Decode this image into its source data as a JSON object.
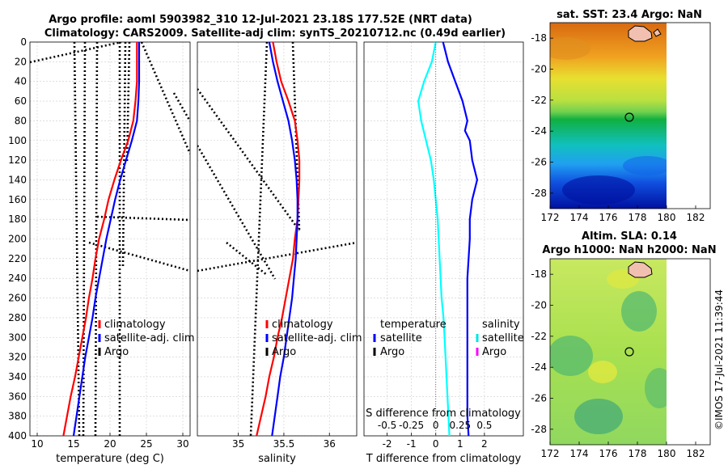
{
  "titles": {
    "line1": "Argo profile: aoml 5903982_310 12-Jul-2021 23.18S 177.52E (NRT data)",
    "line2": "Climatology: CARS2009. Satellite-adj clim: synTS_20210712.nc (0.49d earlier)"
  },
  "copyright": "©IMOS 17-Jul-2021 11:39:44",
  "colors": {
    "climatology": "#ff0000",
    "satellite": "#0000ff",
    "argo": "#000000",
    "t_diff": "#00ffff",
    "s_sat": "#00e5e5",
    "s_argo": "#ff00ff"
  },
  "chart_data": [
    {
      "type": "line",
      "id": "temperature",
      "xlabel": "temperature (deg C)",
      "ylabel": "",
      "xlim": [
        9,
        31
      ],
      "ylim": [
        400,
        0
      ],
      "xticks": [
        "10",
        "15",
        "20",
        "25",
        "30"
      ],
      "yticks": [
        "0",
        "20",
        "40",
        "60",
        "80",
        "100",
        "120",
        "140",
        "160",
        "180",
        "200",
        "220",
        "240",
        "260",
        "280",
        "300",
        "320",
        "340",
        "360",
        "380",
        "400"
      ],
      "legend": [
        "climatology",
        "satellite-adj. clim",
        "Argo"
      ],
      "series": [
        {
          "name": "climatology",
          "depth": [
            0,
            20,
            40,
            60,
            80,
            100,
            120,
            140,
            160,
            180,
            200,
            220,
            240,
            260,
            280,
            300,
            320,
            340,
            360,
            380,
            400
          ],
          "values": [
            23.7,
            23.7,
            23.7,
            23.5,
            23.2,
            22.5,
            21.5,
            20.6,
            19.8,
            19.2,
            18.5,
            18.0,
            17.6,
            17.1,
            16.7,
            16.2,
            15.7,
            15.2,
            14.6,
            14.1,
            13.6
          ]
        },
        {
          "name": "satellite-adj. clim",
          "depth": [
            0,
            20,
            40,
            60,
            80,
            100,
            120,
            140,
            160,
            180,
            200,
            220,
            240,
            260,
            280,
            300,
            320,
            340,
            360,
            380,
            400
          ],
          "values": [
            24.0,
            24.0,
            24.0,
            23.9,
            23.7,
            23.0,
            22.2,
            21.4,
            20.7,
            20.1,
            19.5,
            19.0,
            18.5,
            18.0,
            17.6,
            17.1,
            16.6,
            16.2,
            15.8,
            15.4,
            15.0
          ]
        }
      ]
    },
    {
      "type": "line",
      "id": "salinity",
      "xlabel": "salinity",
      "xlim": [
        34.55,
        36.3
      ],
      "ylim": [
        400,
        0
      ],
      "xticks": [
        "35",
        "35.5",
        "36"
      ],
      "legend": [
        "climatology",
        "satellite-adj. clim",
        "Argo"
      ],
      "series": [
        {
          "name": "climatology",
          "depth": [
            0,
            10,
            20,
            40,
            60,
            80,
            100,
            120,
            140,
            160,
            180,
            200,
            220,
            240,
            260,
            280,
            300,
            320,
            340,
            360,
            380,
            400
          ],
          "values": [
            35.38,
            35.4,
            35.42,
            35.47,
            35.55,
            35.62,
            35.65,
            35.67,
            35.67,
            35.66,
            35.65,
            35.62,
            35.6,
            35.56,
            35.52,
            35.48,
            35.43,
            35.39,
            35.34,
            35.3,
            35.25,
            35.2
          ]
        },
        {
          "name": "satellite-adj. clim",
          "depth": [
            0,
            10,
            20,
            40,
            60,
            80,
            100,
            120,
            140,
            160,
            180,
            200,
            220,
            240,
            260,
            280,
            300,
            320,
            340,
            360,
            380,
            400
          ],
          "values": [
            35.34,
            35.36,
            35.38,
            35.43,
            35.49,
            35.55,
            35.59,
            35.62,
            35.64,
            35.65,
            35.65,
            35.64,
            35.63,
            35.61,
            35.59,
            35.56,
            35.53,
            35.5,
            35.46,
            35.43,
            35.4,
            35.37
          ]
        }
      ]
    },
    {
      "type": "line",
      "id": "differences",
      "xlabel": "T difference from climatology",
      "xlabel_top": "S difference from climatology",
      "xlim": [
        -2.95,
        3.6
      ],
      "ylim": [
        400,
        0
      ],
      "xticks": [
        "-2",
        "-1",
        "0",
        "1",
        "2"
      ],
      "xticks_top": [
        "-0.5",
        "-0.25",
        "0",
        "0.25",
        "0.5"
      ],
      "legend_left": [
        "temperature",
        "satellite",
        "Argo"
      ],
      "legend_right": [
        "salinity",
        "satellite",
        "Argo"
      ],
      "series": [
        {
          "name": "temperature satellite",
          "depth": [
            0,
            10,
            20,
            40,
            60,
            80,
            90,
            100,
            120,
            140,
            160,
            180,
            200,
            220,
            240,
            260,
            280,
            300,
            320,
            340,
            360,
            380,
            400
          ],
          "values": [
            0.3,
            0.4,
            0.5,
            0.8,
            1.1,
            1.3,
            1.2,
            1.4,
            1.5,
            1.7,
            1.5,
            1.4,
            1.4,
            1.35,
            1.3,
            1.3,
            1.3,
            1.3,
            1.3,
            1.3,
            1.3,
            1.3,
            1.35
          ]
        },
        {
          "name": "salinity satellite",
          "depth": [
            0,
            10,
            20,
            40,
            60,
            80,
            100,
            120,
            140,
            160,
            180,
            200,
            220,
            240,
            260,
            280,
            300,
            320,
            340,
            360,
            380,
            400
          ],
          "values": [
            0.0,
            -0.02,
            -0.04,
            -0.12,
            -0.18,
            -0.15,
            -0.1,
            -0.05,
            -0.02,
            0.0,
            0.02,
            0.03,
            0.04,
            0.05,
            0.06,
            0.08,
            0.09,
            0.1,
            0.11,
            0.12,
            0.13,
            0.14
          ]
        }
      ]
    },
    {
      "type": "heatmap",
      "id": "sst_map",
      "title": "sat. SST: 23.4 Argo: NaN",
      "xlim": [
        172,
        183
      ],
      "ylim": [
        -29,
        -17
      ],
      "xticks": [
        "172",
        "174",
        "176",
        "178",
        "180",
        "182"
      ],
      "yticks": [
        "-18",
        "-20",
        "-22",
        "-24",
        "-26",
        "-28"
      ],
      "marker": {
        "lon": 177.52,
        "lat": -23.18
      }
    },
    {
      "type": "heatmap",
      "id": "sla_map",
      "title": "Altim. SLA: 0.14",
      "subtitle": "Argo h1000: NaN h2000: NaN",
      "xlim": [
        172,
        183
      ],
      "ylim": [
        -29,
        -17
      ],
      "xticks": [
        "172",
        "174",
        "176",
        "178",
        "180",
        "182"
      ],
      "yticks": [
        "-18",
        "-20",
        "-22",
        "-24",
        "-26",
        "-28"
      ],
      "marker": {
        "lon": 177.52,
        "lat": -23.18
      }
    }
  ]
}
